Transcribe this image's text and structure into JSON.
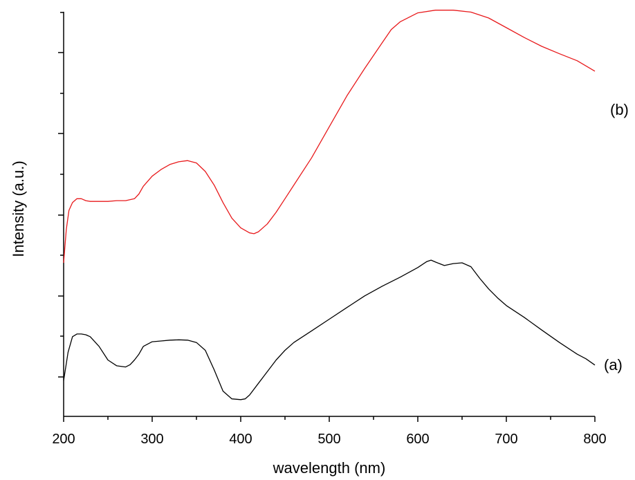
{
  "chart_data": {
    "type": "line",
    "xlabel": "wavelength (nm)",
    "ylabel": "Intensity (a.u.)",
    "xlim": [
      200,
      800
    ],
    "ylim": [
      0,
      10
    ],
    "x_ticks": [
      200,
      300,
      400,
      500,
      600,
      700,
      800
    ],
    "x_tick_labels": [
      "200",
      "300",
      "400",
      "500",
      "600",
      "700",
      "800"
    ],
    "y_tick_labels_shown": false,
    "grid": false,
    "legend": "none",
    "series": [
      {
        "name": "(a)",
        "color": "#000000",
        "x": [
          200,
          205,
          210,
          215,
          220,
          225,
          230,
          240,
          250,
          260,
          270,
          275,
          280,
          285,
          290,
          300,
          310,
          320,
          330,
          340,
          350,
          360,
          370,
          380,
          390,
          400,
          405,
          410,
          420,
          430,
          440,
          450,
          460,
          480,
          500,
          520,
          540,
          560,
          580,
          600,
          610,
          615,
          620,
          630,
          640,
          650,
          660,
          670,
          680,
          690,
          700,
          720,
          740,
          760,
          780,
          790,
          800
        ],
        "values": [
          0.92,
          1.65,
          2.05,
          2.12,
          2.12,
          2.1,
          2.05,
          1.8,
          1.45,
          1.3,
          1.27,
          1.33,
          1.45,
          1.6,
          1.8,
          1.92,
          1.94,
          1.96,
          1.97,
          1.96,
          1.9,
          1.7,
          1.2,
          0.65,
          0.45,
          0.43,
          0.45,
          0.55,
          0.85,
          1.15,
          1.45,
          1.7,
          1.9,
          2.2,
          2.5,
          2.8,
          3.1,
          3.35,
          3.58,
          3.83,
          3.98,
          4.02,
          3.97,
          3.88,
          3.93,
          3.95,
          3.85,
          3.55,
          3.28,
          3.05,
          2.85,
          2.55,
          2.22,
          1.9,
          1.6,
          1.48,
          1.32
        ]
      },
      {
        "name": "(b)",
        "color": "#e8191b",
        "x": [
          200,
          203,
          206,
          210,
          215,
          220,
          225,
          230,
          240,
          250,
          260,
          270,
          280,
          285,
          290,
          300,
          310,
          320,
          330,
          340,
          350,
          360,
          370,
          380,
          390,
          400,
          410,
          415,
          420,
          430,
          440,
          450,
          460,
          480,
          500,
          520,
          540,
          560,
          570,
          580,
          600,
          620,
          640,
          660,
          680,
          700,
          720,
          740,
          760,
          780,
          800
        ],
        "values": [
          3.95,
          4.8,
          5.3,
          5.5,
          5.6,
          5.6,
          5.55,
          5.53,
          5.53,
          5.53,
          5.55,
          5.55,
          5.6,
          5.72,
          5.92,
          6.18,
          6.35,
          6.48,
          6.55,
          6.58,
          6.52,
          6.3,
          5.95,
          5.5,
          5.1,
          4.85,
          4.72,
          4.7,
          4.75,
          4.95,
          5.25,
          5.6,
          5.95,
          6.65,
          7.45,
          8.25,
          8.95,
          9.62,
          9.95,
          10.15,
          10.38,
          10.45,
          10.45,
          10.4,
          10.25,
          10.0,
          9.75,
          9.52,
          9.33,
          9.15,
          8.88
        ]
      }
    ]
  }
}
